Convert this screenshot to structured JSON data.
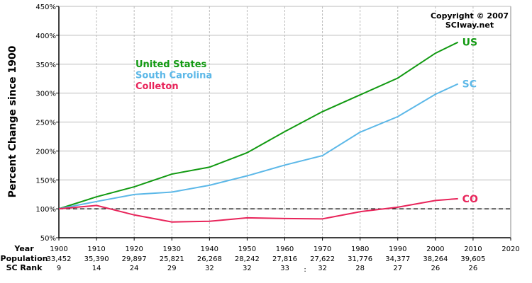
{
  "chart_data": {
    "type": "line",
    "ylabel": "Percent Change since 1900",
    "ylim": [
      50,
      450
    ],
    "yticks": [
      "50%",
      "100%",
      "150%",
      "200%",
      "250%",
      "300%",
      "350%",
      "400%",
      "450%"
    ],
    "xlim": [
      1900,
      2020
    ],
    "grid": true,
    "reference_line": 100,
    "copyright": [
      "Copyright © 2007",
      "SCIway.net"
    ],
    "legend": [
      {
        "label": "United States",
        "color": "#129a12"
      },
      {
        "label": "South Carolina",
        "color": "#5cb8e8"
      },
      {
        "label": "Colleton",
        "color": "#e8245a"
      }
    ],
    "legend_placement": "top-left",
    "x": [
      1900,
      1910,
      1920,
      1930,
      1940,
      1950,
      1960,
      1970,
      1980,
      1990,
      2000,
      2006
    ],
    "series": [
      {
        "name": "US",
        "color": "#129a12",
        "values": [
          100,
          120.7,
          138,
          160,
          172,
          197,
          233.5,
          268,
          297,
          326,
          369,
          388
        ]
      },
      {
        "name": "SC",
        "color": "#5cb8e8",
        "values": [
          100,
          112.6,
          124.8,
          128.9,
          140.7,
          157,
          175.6,
          191.9,
          232.5,
          259.3,
          298,
          316
        ]
      },
      {
        "name": "CO",
        "color": "#e8245a",
        "values": [
          100,
          105.8,
          89.4,
          77.2,
          78.5,
          84.4,
          83.2,
          82.6,
          95,
          102.8,
          114.4,
          117.5
        ]
      }
    ],
    "table": {
      "row_labels": [
        "Year",
        "Population",
        "SC Rank"
      ],
      "years": [
        "1900",
        "1910",
        "1920",
        "1930",
        "1940",
        "1950",
        "1960",
        "1970",
        "1980",
        "1990",
        "2000",
        "2010",
        "2020"
      ],
      "population": [
        "33,452",
        "35,390",
        "29,897",
        "25,821",
        "26,268",
        "28,242",
        "27,816",
        "27,622",
        "31,776",
        "34,377",
        "38,264",
        "39,605",
        ""
      ],
      "rank": [
        "9",
        "14",
        "24",
        "29",
        "32",
        "32",
        "33",
        "32",
        "28",
        "27",
        "26",
        "26",
        ""
      ],
      "stray_mark": ":"
    }
  }
}
